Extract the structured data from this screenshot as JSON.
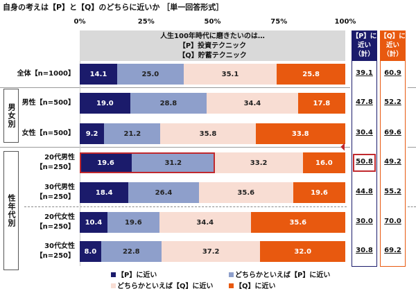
{
  "chart_data": {
    "type": "bar",
    "orientation": "horizontal",
    "stacked": true,
    "title": "自身の考えは【P】と【Q】のどちらに近いか ［単一回答形式］",
    "header_lines": [
      "人生100年時代に磨きたいのは…",
      "【P】投資テクニック",
      "【Q】貯蓄テクニック"
    ],
    "xlim": [
      0,
      100
    ],
    "ticks": [
      "0%",
      "25%",
      "50%",
      "75%",
      "100%"
    ],
    "categories": [
      "全体【n=1000】",
      "男性【n=500】",
      "女性【n=500】",
      "20代男性|【n=250】",
      "30代男性|【n=250】",
      "20代女性|【n=250】",
      "30代女性|【n=250】"
    ],
    "groups": [
      {
        "label": "男女別",
        "rows": [
          1,
          2
        ]
      },
      {
        "label": "性年代別",
        "rows": [
          3,
          4,
          5,
          6
        ]
      }
    ],
    "series": [
      {
        "name": "【P】に近い",
        "color": "#1b1b6b",
        "values": [
          14.1,
          19.0,
          9.2,
          19.6,
          18.4,
          10.4,
          8.0
        ]
      },
      {
        "name": "どちらかといえば【P】に近い",
        "color": "#8e9fcb",
        "values": [
          25.0,
          28.8,
          21.2,
          31.2,
          26.4,
          19.6,
          22.8
        ]
      },
      {
        "name": "どちらかといえば【Q】に近い",
        "color": "#f8ddd3",
        "values": [
          35.1,
          34.4,
          35.8,
          33.2,
          35.6,
          34.4,
          37.2
        ]
      },
      {
        "name": "【Q】に近い",
        "color": "#e8590f",
        "values": [
          25.8,
          17.8,
          33.8,
          16.0,
          19.6,
          35.6,
          32.0
        ]
      }
    ],
    "totals": {
      "p": {
        "header": "【P】に|近い|（計）",
        "color": "#1b1b6b",
        "values": [
          "39.1",
          "47.8",
          "30.4",
          "50.8",
          "44.8",
          "30.0",
          "30.8"
        ]
      },
      "q": {
        "header": "【Q】に|近い|（計）",
        "color": "#e8590f",
        "values": [
          "60.9",
          "52.2",
          "69.6",
          "49.2",
          "55.2",
          "70.0",
          "69.2"
        ]
      }
    },
    "highlight": {
      "row": "20代男性",
      "highlight_color": "#c0282d"
    }
  }
}
